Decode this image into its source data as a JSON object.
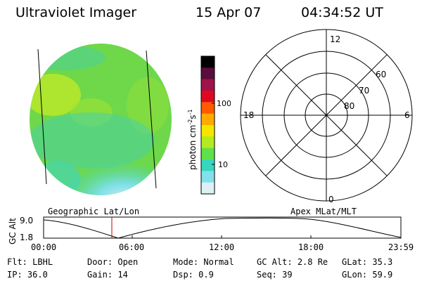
{
  "header": {
    "title": "Ultraviolet Imager",
    "date": "15 Apr 07",
    "time": "04:34:52 UT"
  },
  "colorbar": {
    "label": "photon cm⁻²s⁻¹",
    "label_base": "photon cm",
    "label_exp1": "-2",
    "label_s": "s",
    "label_exp2": "-1",
    "ticks": [
      "100",
      "10"
    ],
    "scale": "log",
    "colors_top_to_bottom": [
      "#000000",
      "#5a0d3c",
      "#a0124a",
      "#dc0a1e",
      "#ff5a00",
      "#ffaa00",
      "#f5e600",
      "#b4eb1e",
      "#5fe14b",
      "#37d7be",
      "#82e1eb",
      "#dcf0f5"
    ]
  },
  "polar_plot": {
    "mlt_labels": {
      "top": "12",
      "right": "6",
      "bottom": "0",
      "left": "18"
    },
    "lat_labels": [
      "60",
      "70",
      "80"
    ]
  },
  "timeline": {
    "y_axis_label": "GC Alt",
    "y_ticks": [
      "9.0",
      "1.8"
    ],
    "left_title": "Geographic Lat/Lon",
    "right_title": "Apex MLat/MLT",
    "x_ticks": [
      "00:00",
      "06:00",
      "12:00",
      "18:00",
      "23:59"
    ],
    "marker_time": "04:34:52"
  },
  "status": {
    "flt_label": "Flt:",
    "flt_value": "LBHL",
    "ip_label": "IP:",
    "ip_value": "36.0",
    "door_label": "Door:",
    "door_value": "Open",
    "gain_label": "Gain:",
    "gain_value": "14",
    "mode_label": "Mode:",
    "mode_value": "Normal",
    "dsp_label": "Dsp:",
    "dsp_value": "0.9",
    "gcalt_label": "GC Alt:",
    "gcalt_value": "2.8 Re",
    "seq_label": "Seq:",
    "seq_value": "39",
    "glat_label": "GLat:",
    "glat_value": "35.3",
    "glon_label": "GLon:",
    "glon_value": "59.9"
  },
  "colors": {
    "marker": "#c00000",
    "disk_green": "#7ddc3c",
    "disk_cyan": "#3cd2c8"
  }
}
